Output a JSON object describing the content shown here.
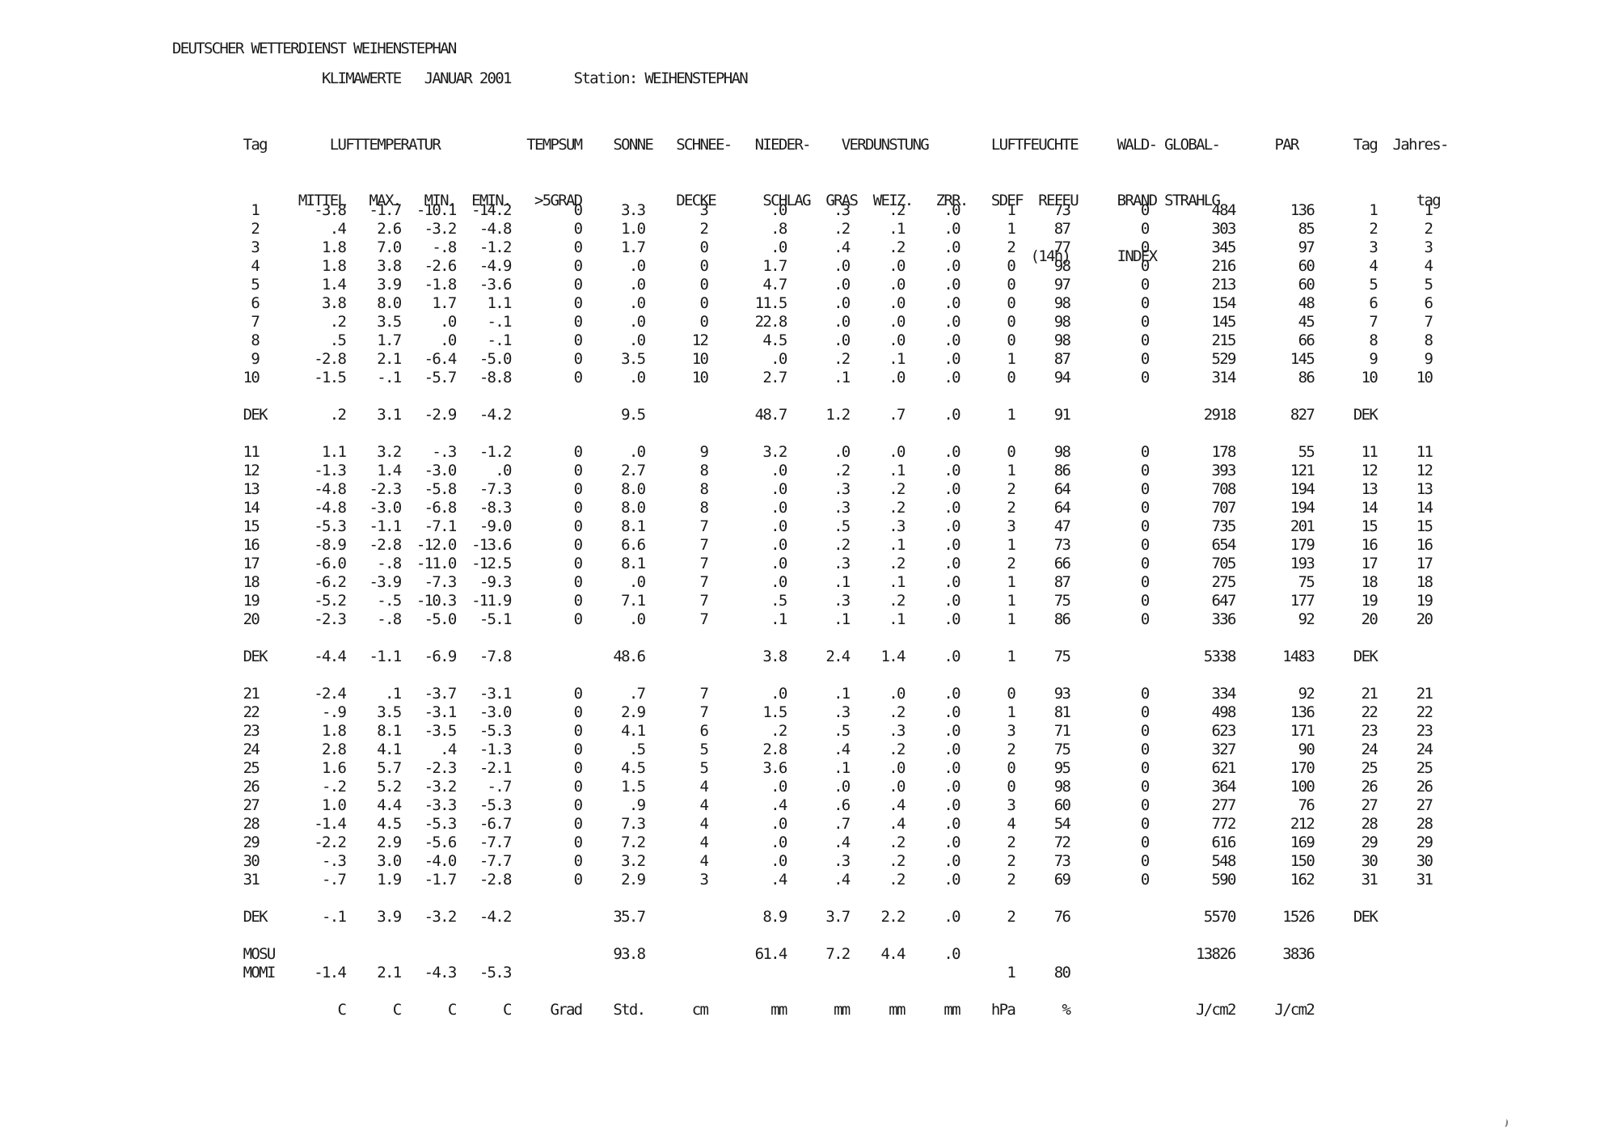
{
  "page": {
    "background": "#ffffff",
    "text_color": "#1a1a1a"
  },
  "report": {
    "agency": "DEUTSCHER WETTERDIENST WEIHENSTEPHAN",
    "title": "KLIMAWERTE",
    "period": "JANUAR 2001",
    "station_label": "Station:",
    "station": "WEIHENSTEPHAN",
    "subtitle_tokens": [
      {
        "t": "KLIMAWERTE",
        "p": 19
      },
      {
        "t": "JANUAR 2001",
        "p": 32
      },
      {
        "t": "Station: WEIHENSTEPHAN",
        "p": 51
      }
    ]
  },
  "table": {
    "columns": [
      "Tag",
      "LUFTTEMPERATUR MITTEL",
      "LUFTTEMPERATUR MAX.",
      "LUFTTEMPERATUR MIN.",
      "LUFTTEMPERATUR EMIN.",
      "TEMPSUM >5GRAD",
      "SONNE",
      "SCHNEE-DECKE",
      "NIEDER-SCHLAG",
      "VERDUNSTUNG GRAS",
      "VERDUNSTUNG WEIZ.",
      "VERDUNSTUNG ZRR.",
      "LUFTFEUCHTE SDEF",
      "LUFTFEUCHTE REFEU (14h)",
      "WALD-BRAND INDEX",
      "GLOBAL-STRAHLG",
      "PAR",
      "Tag",
      "Jahres-tag"
    ],
    "header_lines": [
      [
        {
          "t": "Tag",
          "p": 9
        },
        {
          "t": "LUFTTEMPERATUR",
          "p": 20
        },
        {
          "t": "TEMPSUM",
          "p": 45
        },
        {
          "t": "SONNE",
          "p": 56
        },
        {
          "t": "SCHNEE-",
          "p": 64
        },
        {
          "t": "NIEDER-",
          "p": 74
        },
        {
          "t": "VERDUNSTUNG",
          "p": 85
        },
        {
          "t": "LUFTFEUCHTE",
          "p": 104
        },
        {
          "t": "WALD-",
          "p": 120
        },
        {
          "t": "GLOBAL-",
          "p": 126
        },
        {
          "t": "PAR",
          "p": 140
        },
        {
          "t": "Tag",
          "p": 150
        },
        {
          "t": "Jahres-",
          "p": 155
        }
      ],
      [
        {
          "t": "MITTEL",
          "p": 16
        },
        {
          "t": "MAX.",
          "p": 25
        },
        {
          "t": "MIN.",
          "p": 32
        },
        {
          "t": "EMIN.",
          "p": 38
        },
        {
          "t": ">5GRAD",
          "p": 46
        },
        {
          "t": "DECKE",
          "p": 64
        },
        {
          "t": "SCHLAG",
          "p": 75
        },
        {
          "t": "GRAS",
          "p": 83
        },
        {
          "t": "WEIZ.",
          "p": 89
        },
        {
          "t": "ZRR.",
          "p": 97
        },
        {
          "t": "SDEF",
          "p": 104
        },
        {
          "t": "REFEU",
          "p": 110
        },
        {
          "t": "BRAND",
          "p": 120
        },
        {
          "t": "STRAHLG",
          "p": 126
        },
        {
          "t": "tag",
          "p": 158
        }
      ],
      [
        {
          "t": "(14h)",
          "p": 109
        },
        {
          "t": "INDEX",
          "p": 120
        }
      ]
    ],
    "days_1_10": [
      [
        "1",
        "-3.8",
        "-1.7",
        "-10.1",
        "-14.2",
        "0",
        "3.3",
        "3",
        ".0",
        ".3",
        ".2",
        ".0",
        "1",
        "73",
        "0",
        "484",
        "136",
        "1",
        "1"
      ],
      [
        "2",
        ".4",
        "2.6",
        "-3.2",
        "-4.8",
        "0",
        "1.0",
        "2",
        ".8",
        ".2",
        ".1",
        ".0",
        "1",
        "87",
        "0",
        "303",
        "85",
        "2",
        "2"
      ],
      [
        "3",
        "1.8",
        "7.0",
        "-.8",
        "-1.2",
        "0",
        "1.7",
        "0",
        ".0",
        ".4",
        ".2",
        ".0",
        "2",
        "77",
        "0",
        "345",
        "97",
        "3",
        "3"
      ],
      [
        "4",
        "1.8",
        "3.8",
        "-2.6",
        "-4.9",
        "0",
        ".0",
        "0",
        "1.7",
        ".0",
        ".0",
        ".0",
        "0",
        "98",
        "0",
        "216",
        "60",
        "4",
        "4"
      ],
      [
        "5",
        "1.4",
        "3.9",
        "-1.8",
        "-3.6",
        "0",
        ".0",
        "0",
        "4.7",
        ".0",
        ".0",
        ".0",
        "0",
        "97",
        "0",
        "213",
        "60",
        "5",
        "5"
      ],
      [
        "6",
        "3.8",
        "8.0",
        "1.7",
        "1.1",
        "0",
        ".0",
        "0",
        "11.5",
        ".0",
        ".0",
        ".0",
        "0",
        "98",
        "0",
        "154",
        "48",
        "6",
        "6"
      ],
      [
        "7",
        ".2",
        "3.5",
        ".0",
        "-.1",
        "0",
        ".0",
        "0",
        "22.8",
        ".0",
        ".0",
        ".0",
        "0",
        "98",
        "0",
        "145",
        "45",
        "7",
        "7"
      ],
      [
        "8",
        ".5",
        "1.7",
        ".0",
        "-.1",
        "0",
        ".0",
        "12",
        "4.5",
        ".0",
        ".0",
        ".0",
        "0",
        "98",
        "0",
        "215",
        "66",
        "8",
        "8"
      ],
      [
        "9",
        "-2.8",
        "2.1",
        "-6.4",
        "-5.0",
        "0",
        "3.5",
        "10",
        ".0",
        ".2",
        ".1",
        ".0",
        "1",
        "87",
        "0",
        "529",
        "145",
        "9",
        "9"
      ],
      [
        "10",
        "-1.5",
        "-.1",
        "-5.7",
        "-8.8",
        "0",
        ".0",
        "10",
        "2.7",
        ".1",
        ".0",
        ".0",
        "0",
        "94",
        "0",
        "314",
        "86",
        "10",
        "10"
      ]
    ],
    "dek_1": [
      "DEK",
      ".2",
      "3.1",
      "-2.9",
      "-4.2",
      "",
      "9.5",
      "",
      "48.7",
      "1.2",
      ".7",
      ".0",
      "1",
      "91",
      "",
      "2918",
      "827",
      "DEK",
      ""
    ],
    "days_11_20": [
      [
        "11",
        "1.1",
        "3.2",
        "-.3",
        "-1.2",
        "0",
        ".0",
        "9",
        "3.2",
        ".0",
        ".0",
        ".0",
        "0",
        "98",
        "0",
        "178",
        "55",
        "11",
        "11"
      ],
      [
        "12",
        "-1.3",
        "1.4",
        "-3.0",
        ".0",
        "0",
        "2.7",
        "8",
        ".0",
        ".2",
        ".1",
        ".0",
        "1",
        "86",
        "0",
        "393",
        "121",
        "12",
        "12"
      ],
      [
        "13",
        "-4.8",
        "-2.3",
        "-5.8",
        "-7.3",
        "0",
        "8.0",
        "8",
        ".0",
        ".3",
        ".2",
        ".0",
        "2",
        "64",
        "0",
        "708",
        "194",
        "13",
        "13"
      ],
      [
        "14",
        "-4.8",
        "-3.0",
        "-6.8",
        "-8.3",
        "0",
        "8.0",
        "8",
        ".0",
        ".3",
        ".2",
        ".0",
        "2",
        "64",
        "0",
        "707",
        "194",
        "14",
        "14"
      ],
      [
        "15",
        "-5.3",
        "-1.1",
        "-7.1",
        "-9.0",
        "0",
        "8.1",
        "7",
        ".0",
        ".5",
        ".3",
        ".0",
        "3",
        "47",
        "0",
        "735",
        "201",
        "15",
        "15"
      ],
      [
        "16",
        "-8.9",
        "-2.8",
        "-12.0",
        "-13.6",
        "0",
        "6.6",
        "7",
        ".0",
        ".2",
        ".1",
        ".0",
        "1",
        "73",
        "0",
        "654",
        "179",
        "16",
        "16"
      ],
      [
        "17",
        "-6.0",
        "-.8",
        "-11.0",
        "-12.5",
        "0",
        "8.1",
        "7",
        ".0",
        ".3",
        ".2",
        ".0",
        "2",
        "66",
        "0",
        "705",
        "193",
        "17",
        "17"
      ],
      [
        "18",
        "-6.2",
        "-3.9",
        "-7.3",
        "-9.3",
        "0",
        ".0",
        "7",
        ".0",
        ".1",
        ".1",
        ".0",
        "1",
        "87",
        "0",
        "275",
        "75",
        "18",
        "18"
      ],
      [
        "19",
        "-5.2",
        "-.5",
        "-10.3",
        "-11.9",
        "0",
        "7.1",
        "7",
        ".5",
        ".3",
        ".2",
        ".0",
        "1",
        "75",
        "0",
        "647",
        "177",
        "19",
        "19"
      ],
      [
        "20",
        "-2.3",
        "-.8",
        "-5.0",
        "-5.1",
        "0",
        ".0",
        "7",
        ".1",
        ".1",
        ".1",
        ".0",
        "1",
        "86",
        "0",
        "336",
        "92",
        "20",
        "20"
      ]
    ],
    "dek_2": [
      "DEK",
      "-4.4",
      "-1.1",
      "-6.9",
      "-7.8",
      "",
      "48.6",
      "",
      "3.8",
      "2.4",
      "1.4",
      ".0",
      "1",
      "75",
      "",
      "5338",
      "1483",
      "DEK",
      ""
    ],
    "days_21_31": [
      [
        "21",
        "-2.4",
        ".1",
        "-3.7",
        "-3.1",
        "0",
        ".7",
        "7",
        ".0",
        ".1",
        ".0",
        ".0",
        "0",
        "93",
        "0",
        "334",
        "92",
        "21",
        "21"
      ],
      [
        "22",
        "-.9",
        "3.5",
        "-3.1",
        "-3.0",
        "0",
        "2.9",
        "7",
        "1.5",
        ".3",
        ".2",
        ".0",
        "1",
        "81",
        "0",
        "498",
        "136",
        "22",
        "22"
      ],
      [
        "23",
        "1.8",
        "8.1",
        "-3.5",
        "-5.3",
        "0",
        "4.1",
        "6",
        ".2",
        ".5",
        ".3",
        ".0",
        "3",
        "71",
        "0",
        "623",
        "171",
        "23",
        "23"
      ],
      [
        "24",
        "2.8",
        "4.1",
        ".4",
        "-1.3",
        "0",
        ".5",
        "5",
        "2.8",
        ".4",
        ".2",
        ".0",
        "2",
        "75",
        "0",
        "327",
        "90",
        "24",
        "24"
      ],
      [
        "25",
        "1.6",
        "5.7",
        "-2.3",
        "-2.1",
        "0",
        "4.5",
        "5",
        "3.6",
        ".1",
        ".0",
        ".0",
        "0",
        "95",
        "0",
        "621",
        "170",
        "25",
        "25"
      ],
      [
        "26",
        "-.2",
        "5.2",
        "-3.2",
        "-.7",
        "0",
        "1.5",
        "4",
        ".0",
        ".0",
        ".0",
        ".0",
        "0",
        "98",
        "0",
        "364",
        "100",
        "26",
        "26"
      ],
      [
        "27",
        "1.0",
        "4.4",
        "-3.3",
        "-5.3",
        "0",
        ".9",
        "4",
        ".4",
        ".6",
        ".4",
        ".0",
        "3",
        "60",
        "0",
        "277",
        "76",
        "27",
        "27"
      ],
      [
        "28",
        "-1.4",
        "4.5",
        "-5.3",
        "-6.7",
        "0",
        "7.3",
        "4",
        ".0",
        ".7",
        ".4",
        ".0",
        "4",
        "54",
        "0",
        "772",
        "212",
        "28",
        "28"
      ],
      [
        "29",
        "-2.2",
        "2.9",
        "-5.6",
        "-7.7",
        "0",
        "7.2",
        "4",
        ".0",
        ".4",
        ".2",
        ".0",
        "2",
        "72",
        "0",
        "616",
        "169",
        "29",
        "29"
      ],
      [
        "30",
        "-.3",
        "3.0",
        "-4.0",
        "-7.7",
        "0",
        "3.2",
        "4",
        ".0",
        ".3",
        ".2",
        ".0",
        "2",
        "73",
        "0",
        "548",
        "150",
        "30",
        "30"
      ],
      [
        "31",
        "-.7",
        "1.9",
        "-1.7",
        "-2.8",
        "0",
        "2.9",
        "3",
        ".4",
        ".4",
        ".2",
        ".0",
        "2",
        "69",
        "0",
        "590",
        "162",
        "31",
        "31"
      ]
    ],
    "dek_3": [
      "DEK",
      "-.1",
      "3.9",
      "-3.2",
      "-4.2",
      "",
      "35.7",
      "",
      "8.9",
      "3.7",
      "2.2",
      ".0",
      "2",
      "76",
      "",
      "5570",
      "1526",
      "DEK",
      ""
    ],
    "mosu": [
      "MOSU",
      "",
      "",
      "",
      "",
      "",
      "93.8",
      "",
      "61.4",
      "7.2",
      "4.4",
      ".0",
      "",
      "",
      "",
      "13826",
      "3836",
      "",
      ""
    ],
    "momi": [
      "MOMI",
      "-1.4",
      "2.1",
      "-4.3",
      "-5.3",
      "",
      "",
      "",
      "",
      "",
      "",
      "",
      "1",
      "80",
      "",
      "",
      "",
      "",
      ""
    ],
    "units": [
      "",
      "C",
      "C",
      "C",
      "C",
      "Grad",
      "Std.",
      "cm",
      "mm",
      "mm",
      "mm",
      "mm",
      "hPa",
      "%",
      "",
      "J/cm2",
      "J/cm2",
      "",
      ""
    ]
  }
}
